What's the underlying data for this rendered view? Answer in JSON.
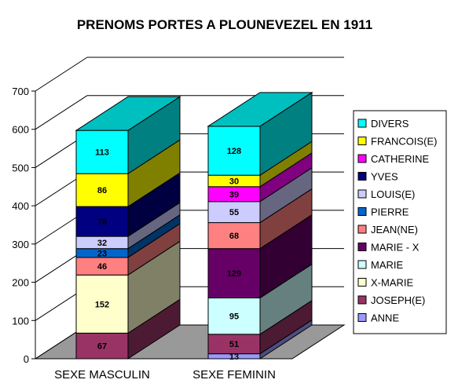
{
  "chart_data": {
    "type": "bar",
    "stacked": true,
    "three_d": true,
    "title": "PRENOMS PORTES A PLOUNEVEZEL EN 1911",
    "categories": [
      "SEXE MASCULIN",
      "SEXE FEMININ"
    ],
    "ylim": [
      0,
      700
    ],
    "yticks": [
      0,
      100,
      200,
      300,
      400,
      500,
      600,
      700
    ],
    "grid": true,
    "legend_position": "right",
    "series": [
      {
        "name": "ANNE",
        "values": [
          0,
          13
        ],
        "color": "#9999ff",
        "labels": [
          null,
          "13"
        ]
      },
      {
        "name": "JOSEPH(E)",
        "values": [
          67,
          51
        ],
        "color": "#993366",
        "labels": [
          "67",
          "51"
        ]
      },
      {
        "name": "X-MARIE",
        "values": [
          152,
          0
        ],
        "color": "#ffffcc",
        "labels": [
          "152",
          null
        ]
      },
      {
        "name": "MARIE",
        "values": [
          0,
          95
        ],
        "color": "#ccffff",
        "labels": [
          null,
          "95"
        ]
      },
      {
        "name": "MARIE - X",
        "values": [
          0,
          129
        ],
        "color": "#660066",
        "labels": [
          null,
          "129"
        ]
      },
      {
        "name": "JEAN(NE)",
        "values": [
          46,
          68
        ],
        "color": "#ff8080",
        "labels": [
          "46",
          "68"
        ]
      },
      {
        "name": "PIERRE",
        "values": [
          23,
          0
        ],
        "color": "#0066cc",
        "labels": [
          "23",
          null
        ]
      },
      {
        "name": "LOUIS(E)",
        "values": [
          32,
          55
        ],
        "color": "#ccccff",
        "labels": [
          "32",
          "55"
        ]
      },
      {
        "name": "YVES",
        "values": [
          78,
          0
        ],
        "color": "#000080",
        "labels": [
          "78",
          null
        ]
      },
      {
        "name": "CATHERINE",
        "values": [
          0,
          39
        ],
        "color": "#ff00ff",
        "labels": [
          null,
          "39"
        ]
      },
      {
        "name": "FRANCOIS(E)",
        "values": [
          86,
          30
        ],
        "color": "#ffff00",
        "labels": [
          "86",
          "30"
        ]
      },
      {
        "name": "DIVERS",
        "values": [
          113,
          128
        ],
        "color": "#00ffff",
        "labels": [
          "113",
          "128"
        ]
      }
    ]
  }
}
